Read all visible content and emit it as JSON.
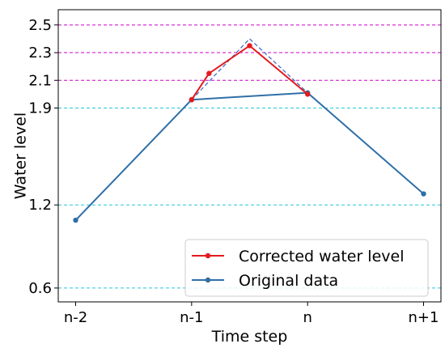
{
  "chart_data": {
    "type": "line",
    "xlabel": "Time step",
    "ylabel": "Water level",
    "x_ticks": [
      "n-2",
      "n-1",
      "n",
      "n+1"
    ],
    "y_ticks": [
      "0.6",
      "1.2",
      "1.9",
      "2.1",
      "2.3",
      "2.5"
    ],
    "x_range": [
      -2.15,
      1.15
    ],
    "y_range": [
      0.5,
      2.61
    ],
    "series": [
      {
        "name": "Corrected water level",
        "color": "#e41a1c",
        "marker": "circle",
        "points": [
          [
            -1.0,
            1.96
          ],
          [
            -0.85,
            2.15
          ],
          [
            -0.5,
            2.35
          ],
          [
            0.0,
            2.0
          ]
        ]
      },
      {
        "name": "Original data",
        "color": "#2f6fa7",
        "marker": "circle",
        "points": [
          [
            -2.0,
            1.09
          ],
          [
            -1.0,
            1.96
          ],
          [
            0.0,
            2.01
          ],
          [
            1.0,
            1.28
          ]
        ]
      }
    ],
    "dashed_line": {
      "color": "#3a66c4",
      "points": [
        [
          -1.0,
          1.96
        ],
        [
          -0.5,
          2.4
        ],
        [
          0.0,
          2.01
        ]
      ]
    },
    "gridlines": [
      {
        "y": 0.6,
        "color": "#26c6da"
      },
      {
        "y": 1.2,
        "color": "#26c6da"
      },
      {
        "y": 1.9,
        "color": "#26c6da"
      },
      {
        "y": 2.1,
        "color": "#cc00cc"
      },
      {
        "y": 2.3,
        "color": "#cc00cc"
      },
      {
        "y": 2.5,
        "color": "#cc00cc"
      }
    ],
    "legend": {
      "position": "lower-right",
      "entries": [
        "Corrected water level",
        "Original data"
      ]
    }
  }
}
